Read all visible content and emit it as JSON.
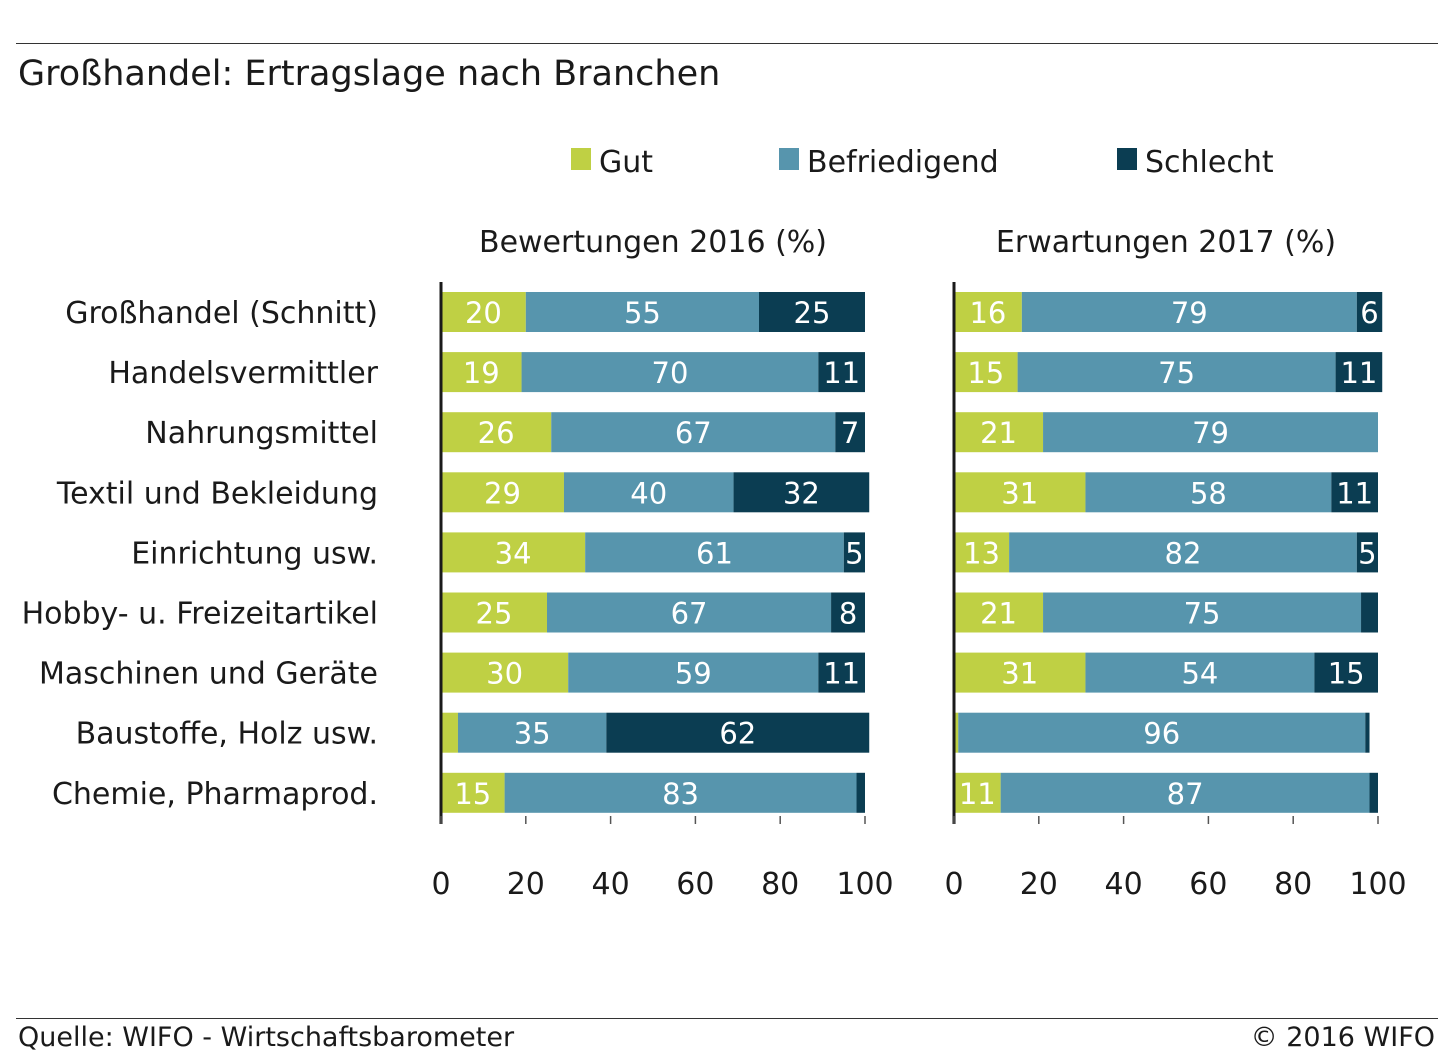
{
  "title": "Großhandel: Ertragslage nach Branchen",
  "footer": {
    "source": "Quelle: WIFO - Wirtschaftsbarometer",
    "copyright": "© 2016 WIFO"
  },
  "colors": {
    "Gut": "#bfd044",
    "Befriedigend": "#5795ad",
    "Schlecht": "#0b3d52"
  },
  "chart_data": {
    "type": "bar",
    "orientation": "horizontal",
    "stacked": true,
    "legend_position": "top",
    "categories": [
      "Großhandel (Schnitt)",
      "Handelsvermittler",
      "Nahrungsmittel",
      "Textil und Bekleidung",
      "Einrichtung usw.",
      "Hobby- u. Freizeitartikel",
      "Maschinen und Geräte",
      "Baustoffe, Holz usw.",
      "Chemie, Pharmaprod."
    ],
    "legend": [
      "Gut",
      "Befriedigend",
      "Schlecht"
    ],
    "xlim": [
      0,
      100
    ],
    "xticks": [
      "0",
      "20",
      "40",
      "60",
      "80",
      "100"
    ],
    "panels": [
      {
        "title": "Bewertungen 2016 (%)",
        "series": [
          {
            "name": "Gut",
            "values": [
              20,
              19,
              26,
              29,
              34,
              25,
              30,
              4,
              15
            ]
          },
          {
            "name": "Befriedigend",
            "values": [
              55,
              70,
              67,
              40,
              61,
              67,
              59,
              35,
              83
            ]
          },
          {
            "name": "Schlecht",
            "values": [
              25,
              11,
              7,
              32,
              5,
              8,
              11,
              62,
              2
            ]
          }
        ],
        "labels": [
          [
            "20",
            "55",
            "25"
          ],
          [
            "19",
            "70",
            "11"
          ],
          [
            "26",
            "67",
            "7"
          ],
          [
            "29",
            "40",
            "32"
          ],
          [
            "34",
            "61",
            "5"
          ],
          [
            "25",
            "67",
            "8"
          ],
          [
            "30",
            "59",
            "11"
          ],
          [
            "",
            "35",
            "62"
          ],
          [
            "15",
            "83",
            ""
          ]
        ]
      },
      {
        "title": "Erwartungen 2017 (%)",
        "series": [
          {
            "name": "Gut",
            "values": [
              16,
              15,
              21,
              31,
              13,
              21,
              31,
              1,
              11
            ]
          },
          {
            "name": "Befriedigend",
            "values": [
              79,
              75,
              79,
              58,
              82,
              75,
              54,
              96,
              87
            ]
          },
          {
            "name": "Schlecht",
            "values": [
              6,
              11,
              0,
              11,
              5,
              4,
              15,
              1,
              2
            ]
          }
        ],
        "labels": [
          [
            "16",
            "79",
            "6"
          ],
          [
            "15",
            "75",
            "11"
          ],
          [
            "21",
            "79",
            ""
          ],
          [
            "31",
            "58",
            "11"
          ],
          [
            "13",
            "82",
            "5"
          ],
          [
            "21",
            "75",
            ""
          ],
          [
            "31",
            "54",
            "15"
          ],
          [
            "",
            "96",
            ""
          ],
          [
            "11",
            "87",
            ""
          ]
        ]
      }
    ]
  }
}
